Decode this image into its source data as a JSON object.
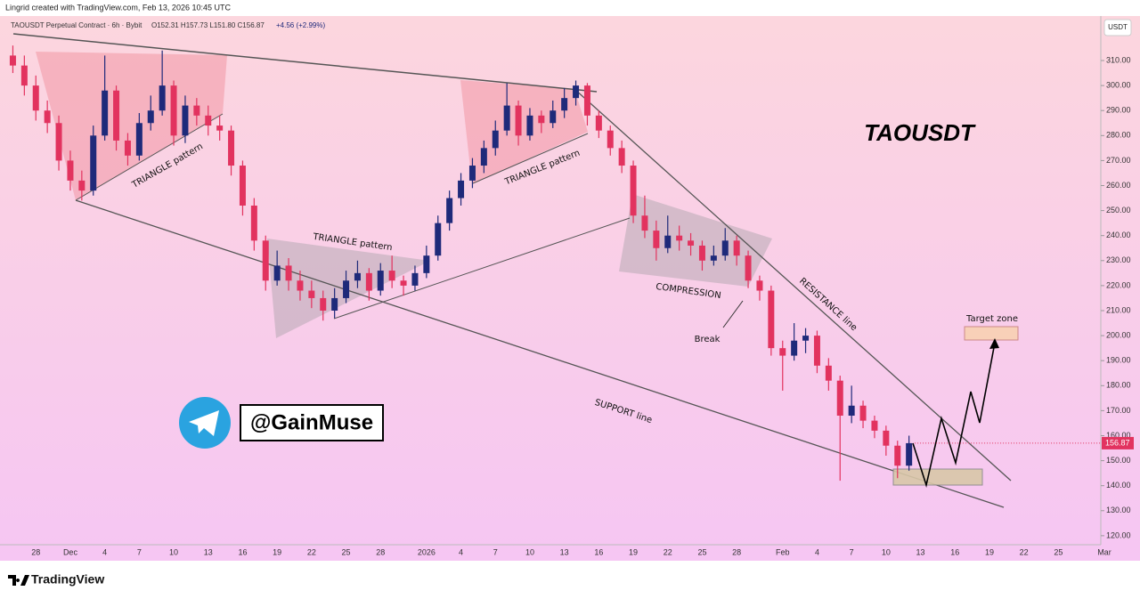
{
  "header": {
    "credit": "Lingrid created with TradingView.com, Feb 13, 2026 10:45 UTC",
    "symbol": "TAOUSDT Perpetual Contract · 6h · Bybit",
    "ohlc": "O152.31 H157.73 L151.80 C156.87",
    "change": "+4.56 (+2.99%)",
    "currency": "USDT",
    "last_price": "156.87"
  },
  "annotations": {
    "title": "TAOUSDT",
    "triangle_1": "TRIANGLE pattern",
    "triangle_2": "TRIANGLE pattern",
    "triangle_3": "TRIANGLE pattern",
    "compression": "COMPRESSION",
    "break": "Break",
    "resistance": "RESISTANCE line",
    "support": "SUPPORT line",
    "target": "Target zone",
    "handle": "@GainMuse"
  },
  "footer": {
    "brand": "TradingView"
  },
  "chart_data": {
    "type": "candlestick",
    "up_color": "#1f2a7a",
    "down_color": "#e2335f",
    "ylim": [
      116.4,
      327.8
    ],
    "yticks": [
      {
        "value": 120,
        "label": "120.00"
      },
      {
        "value": 130,
        "label": "130.00"
      },
      {
        "value": 140,
        "label": "140.00"
      },
      {
        "value": 150,
        "label": "150.00"
      },
      {
        "value": 160,
        "label": "160.00"
      },
      {
        "value": 170,
        "label": "170.00"
      },
      {
        "value": 180,
        "label": "180.00"
      },
      {
        "value": 190,
        "label": "190.00"
      },
      {
        "value": 200,
        "label": "200.00"
      },
      {
        "value": 210,
        "label": "210.00"
      },
      {
        "value": 220,
        "label": "220.00"
      },
      {
        "value": 230,
        "label": "230.00"
      },
      {
        "value": 240,
        "label": "240.00"
      },
      {
        "value": 250,
        "label": "250.00"
      },
      {
        "value": 260,
        "label": "260.00"
      },
      {
        "value": 270,
        "label": "270.00"
      },
      {
        "value": 280,
        "label": "280.00"
      },
      {
        "value": 290,
        "label": "290.00"
      },
      {
        "value": 300,
        "label": "300.00"
      },
      {
        "value": 310,
        "label": "310.00"
      }
    ],
    "xlabels": [
      "28",
      "Dec",
      "4",
      "7",
      "10",
      "13",
      "16",
      "19",
      "22",
      "25",
      "28",
      "2026",
      "4",
      "7",
      "10",
      "13",
      "16",
      "19",
      "22",
      "25",
      "28",
      "Feb",
      "4",
      "7",
      "10",
      "13",
      "16",
      "19",
      "22",
      "25",
      "Mar"
    ],
    "candles": [
      [
        312,
        316,
        305,
        308
      ],
      [
        308,
        312,
        296,
        300
      ],
      [
        300,
        304,
        286,
        290
      ],
      [
        290,
        294,
        281,
        285
      ],
      [
        285,
        288,
        266,
        270
      ],
      [
        270,
        274,
        258,
        262
      ],
      [
        262,
        266,
        254,
        258
      ],
      [
        258,
        284,
        256,
        280
      ],
      [
        280,
        312,
        278,
        298
      ],
      [
        298,
        300,
        274,
        278
      ],
      [
        278,
        281,
        268,
        272
      ],
      [
        272,
        289,
        270,
        285
      ],
      [
        285,
        296,
        282,
        290
      ],
      [
        290,
        314,
        288,
        300
      ],
      [
        300,
        302,
        276,
        280
      ],
      [
        280,
        296,
        277,
        292
      ],
      [
        292,
        295,
        284,
        288
      ],
      [
        288,
        292,
        280,
        284
      ],
      [
        284,
        288,
        278,
        282
      ],
      [
        282,
        284,
        264,
        268
      ],
      [
        268,
        270,
        248,
        252
      ],
      [
        252,
        255,
        234,
        238
      ],
      [
        238,
        240,
        218,
        222
      ],
      [
        222,
        234,
        220,
        228
      ],
      [
        228,
        231,
        218,
        222
      ],
      [
        222,
        226,
        214,
        218
      ],
      [
        218,
        222,
        211,
        215
      ],
      [
        215,
        218,
        206,
        210
      ],
      [
        210,
        219,
        207,
        215
      ],
      [
        215,
        226,
        213,
        222
      ],
      [
        222,
        230,
        219,
        225
      ],
      [
        225,
        227,
        214,
        218
      ],
      [
        218,
        229,
        216,
        226
      ],
      [
        226,
        232,
        219,
        222
      ],
      [
        222,
        224,
        216,
        220
      ],
      [
        220,
        228,
        218,
        225
      ],
      [
        225,
        236,
        223,
        232
      ],
      [
        232,
        248,
        230,
        245
      ],
      [
        245,
        258,
        242,
        255
      ],
      [
        255,
        265,
        252,
        262
      ],
      [
        262,
        271,
        259,
        268
      ],
      [
        268,
        278,
        265,
        275
      ],
      [
        275,
        286,
        272,
        282
      ],
      [
        282,
        301,
        280,
        292
      ],
      [
        292,
        294,
        276,
        280
      ],
      [
        280,
        291,
        278,
        288
      ],
      [
        288,
        290,
        281,
        285
      ],
      [
        285,
        294,
        283,
        290
      ],
      [
        290,
        299,
        287,
        295
      ],
      [
        295,
        302,
        292,
        300
      ],
      [
        300,
        301,
        284,
        288
      ],
      [
        288,
        290,
        279,
        282
      ],
      [
        282,
        284,
        272,
        275
      ],
      [
        275,
        278,
        265,
        268
      ],
      [
        268,
        270,
        245,
        248
      ],
      [
        248,
        256,
        239,
        242
      ],
      [
        242,
        246,
        230,
        235
      ],
      [
        235,
        248,
        233,
        240
      ],
      [
        240,
        244,
        234,
        238
      ],
      [
        238,
        241,
        232,
        236
      ],
      [
        236,
        238,
        226,
        230
      ],
      [
        230,
        236,
        228,
        232
      ],
      [
        232,
        243,
        230,
        238
      ],
      [
        238,
        240,
        228,
        232
      ],
      [
        232,
        234,
        219,
        222
      ],
      [
        222,
        224,
        214,
        218
      ],
      [
        218,
        220,
        192,
        195
      ],
      [
        195,
        198,
        178,
        192
      ],
      [
        192,
        205,
        190,
        198
      ],
      [
        198,
        203,
        193,
        200
      ],
      [
        200,
        202,
        185,
        188
      ],
      [
        188,
        191,
        178,
        182
      ],
      [
        182,
        184,
        142,
        168
      ],
      [
        168,
        180,
        165,
        172
      ],
      [
        172,
        174,
        163,
        166
      ],
      [
        166,
        168,
        159,
        162
      ],
      [
        162,
        164,
        152,
        156
      ],
      [
        156,
        158,
        143,
        148
      ],
      [
        148,
        160,
        146,
        157
      ]
    ]
  }
}
